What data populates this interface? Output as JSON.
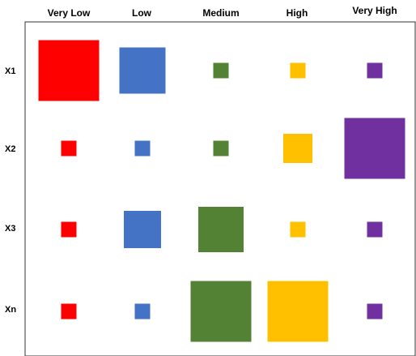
{
  "chart_data": {
    "type": "heatmap",
    "encoding": "square-size",
    "title": "",
    "columns": [
      "Very Low",
      "Low",
      "Medium",
      "High",
      "Very High"
    ],
    "rows": [
      "X1",
      "X2",
      "X3",
      "Xn"
    ],
    "colors": [
      "#ff0000",
      "#4472c4",
      "#548235",
      "#ffc000",
      "#7030a0"
    ],
    "values": [
      [
        75,
        57,
        19,
        19,
        19
      ],
      [
        19,
        19,
        19,
        36,
        75
      ],
      [
        19,
        46,
        56,
        19,
        19
      ],
      [
        19,
        19,
        75,
        75,
        19
      ]
    ],
    "grid": false,
    "legend": "none"
  }
}
